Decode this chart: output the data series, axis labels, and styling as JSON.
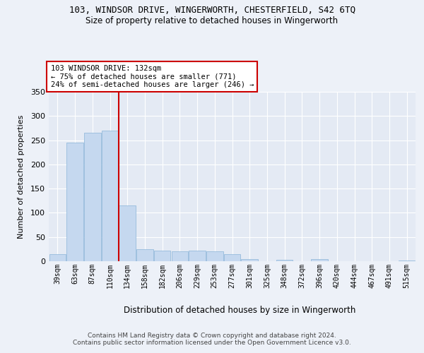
{
  "title1": "103, WINDSOR DRIVE, WINGERWORTH, CHESTERFIELD, S42 6TQ",
  "title2": "Size of property relative to detached houses in Wingerworth",
  "xlabel": "Distribution of detached houses by size in Wingerworth",
  "ylabel": "Number of detached properties",
  "bin_labels": [
    "39sqm",
    "63sqm",
    "87sqm",
    "110sqm",
    "134sqm",
    "158sqm",
    "182sqm",
    "206sqm",
    "229sqm",
    "253sqm",
    "277sqm",
    "301sqm",
    "325sqm",
    "348sqm",
    "372sqm",
    "396sqm",
    "420sqm",
    "444sqm",
    "467sqm",
    "491sqm",
    "515sqm"
  ],
  "bar_heights": [
    15,
    245,
    265,
    270,
    115,
    25,
    22,
    20,
    22,
    20,
    15,
    5,
    0,
    3,
    0,
    4,
    0,
    0,
    0,
    0,
    2
  ],
  "bar_color": "#c5d8ef",
  "bar_edge_color": "#8ab4d8",
  "vline_x_idx": 4,
  "vline_color": "#cc0000",
  "annotation_text": "103 WINDSOR DRIVE: 132sqm\n← 75% of detached houses are smaller (771)\n24% of semi-detached houses are larger (246) →",
  "annotation_box_color": "#ffffff",
  "annotation_box_edge": "#cc0000",
  "footer": "Contains HM Land Registry data © Crown copyright and database right 2024.\nContains public sector information licensed under the Open Government Licence v3.0.",
  "ylim": [
    0,
    350
  ],
  "yticks": [
    0,
    50,
    100,
    150,
    200,
    250,
    300,
    350
  ],
  "bg_color": "#edf1f8",
  "plot_bg": "#e4eaf4"
}
